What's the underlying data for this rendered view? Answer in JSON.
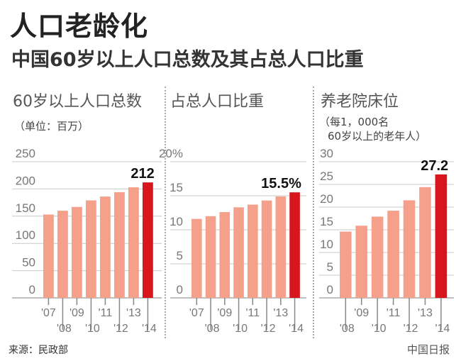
{
  "title": "人口老龄化",
  "subtitle": "中国60岁以上人口总数及其占总人口比重",
  "source": "来源：民政部",
  "brand": "中国日报",
  "colors": {
    "bar": "#f5a08a",
    "highlight": "#d7161e",
    "grid": "#c8c8c8",
    "tick_label": "#777"
  },
  "chart_data": [
    {
      "type": "bar",
      "title": "60岁以上人口总数",
      "note": "（单位：百万）",
      "categories": [
        "'07",
        "'08",
        "'09",
        "'10",
        "'11",
        "'12",
        "'13",
        "'14"
      ],
      "values": [
        153,
        160,
        167,
        179,
        186,
        194,
        203,
        212
      ],
      "yticks": [
        "0",
        "50",
        "100",
        "150",
        "200",
        "250"
      ],
      "ylim": [
        0,
        250
      ],
      "highlight_label": "212",
      "grid": true
    },
    {
      "type": "bar",
      "title": "占总人口比重",
      "note": "",
      "categories": [
        "'07",
        "'08",
        "'09",
        "'10",
        "'11",
        "'12",
        "'13",
        "'14"
      ],
      "values": [
        11.6,
        12.0,
        12.6,
        13.3,
        13.7,
        14.3,
        14.9,
        15.5
      ],
      "yticks": [
        "0",
        "5",
        "10",
        "15",
        "20%"
      ],
      "ylim": [
        0,
        20
      ],
      "highlight_label": "15.5%",
      "grid": true
    },
    {
      "type": "bar",
      "title": "养老院床位",
      "note": "（每1，000名",
      "note2": "60岁以上的老年人）",
      "categories": [
        "'08",
        "'09",
        "'10",
        "'11",
        "'12",
        "'13",
        "'14"
      ],
      "values": [
        14.6,
        15.9,
        17.9,
        19.2,
        21.5,
        24.4,
        27.2
      ],
      "yticks": [
        "0",
        "5",
        "10",
        "15",
        "20",
        "25",
        "30"
      ],
      "ylim": [
        0,
        30
      ],
      "highlight_label": "27.2",
      "grid": true
    }
  ]
}
